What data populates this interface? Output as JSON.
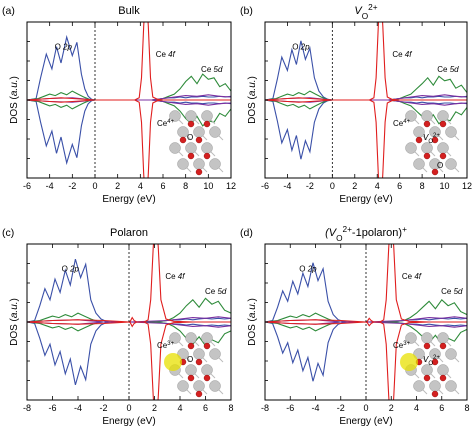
{
  "chart_data": [
    {
      "type": "line",
      "panel_label": "(a)",
      "title": "Bulk",
      "title_html": "Bulk",
      "xlabel": "Energy (eV)",
      "ylabel": "DOS (a.u.)",
      "xlim": [
        -6,
        12
      ],
      "xticks": [
        -6,
        -4,
        -2,
        0,
        2,
        4,
        6,
        8,
        10,
        12
      ],
      "fermi": 0,
      "annotations": [
        {
          "text": "O 2p",
          "x": -2.8,
          "y": 0.68
        },
        {
          "text": "Ce 4f",
          "x": 6.2,
          "y": 0.58
        },
        {
          "text": "Ce 5d",
          "x": 10.3,
          "y": 0.38
        }
      ],
      "struct_labels": [
        "Ce4+",
        "O"
      ],
      "series": [
        {
          "color": "#3a50a8",
          "x": [
            -6,
            -5.2,
            -4.8,
            -4.3,
            -3.8,
            -3.4,
            -3,
            -2.5,
            -2,
            -1.6,
            -1.2,
            -0.9,
            -0.6,
            -0.3,
            0,
            1,
            2,
            3,
            4,
            5,
            5.5,
            6,
            6.5,
            7,
            7.5,
            8,
            8.5,
            9,
            9.5,
            10,
            10.5,
            11,
            11.5,
            12
          ],
          "y": [
            0,
            0.02,
            0.3,
            0.62,
            0.42,
            0.72,
            0.5,
            0.85,
            0.6,
            0.78,
            0.35,
            0.15,
            0.05,
            0.01,
            0,
            0,
            0,
            0,
            0,
            0,
            0.01,
            0.02,
            0.03,
            0.03,
            0.04,
            0.03,
            0.04,
            0.04,
            0.05,
            0.04,
            0.04,
            0.05,
            0.04,
            0.05
          ]
        },
        {
          "color": "#2e8b3a",
          "x": [
            -6,
            -5,
            -4.5,
            -4,
            -3.5,
            -3,
            -2.5,
            -2,
            -1.5,
            -1,
            -0.5,
            0,
            4,
            5,
            6,
            6.5,
            7,
            7.5,
            8,
            8.5,
            9,
            9.5,
            10,
            10.5,
            11,
            11.5,
            12
          ],
          "y": [
            0,
            0.02,
            0.05,
            0.08,
            0.06,
            0.1,
            0.07,
            0.12,
            0.08,
            0.04,
            0.01,
            0,
            0,
            0,
            0.02,
            0.05,
            0.08,
            0.15,
            0.25,
            0.32,
            0.22,
            0.35,
            0.28,
            0.3,
            0.18,
            0.22,
            0.12
          ]
        },
        {
          "color": "#7b2fa0",
          "x": [
            -6,
            -4,
            -2,
            0,
            5,
            6,
            7,
            8,
            9,
            10,
            11,
            12
          ],
          "y": [
            0,
            0.02,
            0.03,
            0,
            0,
            0.02,
            0.04,
            0.06,
            0.05,
            0.07,
            0.05,
            0.04
          ]
        },
        {
          "color": "#e01e1e",
          "x": [
            -6,
            -4,
            -3,
            -2,
            0,
            3.5,
            3.9,
            4.1,
            4.3,
            4.5,
            4.7,
            4.9,
            5.1,
            5.5,
            6,
            8,
            10,
            12
          ],
          "y": [
            0,
            0.02,
            0.03,
            0.02,
            0,
            0,
            0.03,
            0.3,
            1.0,
            1.5,
            1.0,
            0.3,
            0.04,
            0.01,
            0,
            0,
            0,
            0
          ]
        }
      ]
    },
    {
      "type": "line",
      "panel_label": "(b)",
      "title": "VO2+",
      "title_html": "V<sub>O</sub><sup>2+</sup>",
      "xlabel": "Energy (eV)",
      "ylabel": "DOS (a.u.)",
      "xlim": [
        -6,
        12
      ],
      "xticks": [
        -6,
        -4,
        -2,
        0,
        2,
        4,
        6,
        8,
        10,
        12
      ],
      "fermi": 0,
      "annotations": [
        {
          "text": "O 2p",
          "x": -2.8,
          "y": 0.68
        },
        {
          "text": "Ce 4f",
          "x": 6.2,
          "y": 0.58
        },
        {
          "text": "Ce 5d",
          "x": 10.3,
          "y": 0.38
        }
      ],
      "struct_labels": [
        "Ce4+",
        "VO2+",
        "O"
      ],
      "series": [
        {
          "color": "#3a50a8",
          "x": [
            -6,
            -5.3,
            -4.9,
            -4.5,
            -4,
            -3.6,
            -3.2,
            -2.8,
            -2.4,
            -2,
            -1.6,
            -1.2,
            -0.8,
            -0.4,
            0,
            1,
            2,
            3,
            4,
            5,
            5.5,
            6,
            6.5,
            7,
            7.5,
            8,
            8.5,
            9,
            9.5,
            10,
            10.5,
            11,
            11.5,
            12
          ],
          "y": [
            0,
            0.02,
            0.28,
            0.58,
            0.4,
            0.68,
            0.48,
            0.8,
            0.55,
            0.7,
            0.3,
            0.12,
            0.04,
            0.01,
            0,
            0,
            0,
            0,
            0,
            0,
            0.01,
            0.02,
            0.03,
            0.03,
            0.04,
            0.03,
            0.04,
            0.04,
            0.05,
            0.04,
            0.04,
            0.05,
            0.04,
            0.05
          ]
        },
        {
          "color": "#2e8b3a",
          "x": [
            -6,
            -5,
            -4.5,
            -4,
            -3.5,
            -3,
            -2.5,
            -2,
            -1.5,
            -1,
            -0.5,
            0,
            4,
            5,
            6,
            6.5,
            7,
            7.5,
            8,
            8.5,
            9,
            9.5,
            10,
            10.5,
            11,
            11.5,
            12
          ],
          "y": [
            0,
            0.02,
            0.05,
            0.08,
            0.06,
            0.1,
            0.07,
            0.12,
            0.08,
            0.04,
            0.01,
            0,
            0,
            0,
            0.02,
            0.05,
            0.08,
            0.15,
            0.22,
            0.3,
            0.2,
            0.32,
            0.26,
            0.28,
            0.16,
            0.2,
            0.1
          ]
        },
        {
          "color": "#7b2fa0",
          "x": [
            -6,
            -4,
            -2,
            0,
            5,
            6,
            7,
            8,
            9,
            10,
            11,
            12
          ],
          "y": [
            0,
            0.02,
            0.03,
            0,
            0,
            0.02,
            0.04,
            0.06,
            0.05,
            0.07,
            0.05,
            0.04
          ]
        },
        {
          "color": "#e01e1e",
          "x": [
            -6,
            -4,
            -3,
            -2,
            0,
            3.3,
            3.7,
            3.9,
            4.1,
            4.3,
            4.5,
            4.7,
            4.9,
            5.3,
            6,
            8,
            10,
            12
          ],
          "y": [
            0,
            0.02,
            0.03,
            0.02,
            0,
            0,
            0.03,
            0.3,
            1.0,
            1.5,
            1.0,
            0.3,
            0.04,
            0.01,
            0,
            0,
            0,
            0
          ]
        }
      ]
    },
    {
      "type": "line",
      "panel_label": "(c)",
      "title": "Polaron",
      "title_html": "Polaron",
      "xlabel": "Energy (eV)",
      "ylabel": "DOS (a.u.)",
      "xlim": [
        -8,
        8
      ],
      "xticks": [
        -8,
        -6,
        -4,
        -2,
        0,
        2,
        4,
        6,
        8
      ],
      "fermi": 0,
      "annotations": [
        {
          "text": "O 2p",
          "x": -4.6,
          "y": 0.68
        },
        {
          "text": "Ce 4f",
          "x": 3.6,
          "y": 0.58
        },
        {
          "text": "Ce 5d",
          "x": 6.8,
          "y": 0.38
        }
      ],
      "struct_labels": [
        "Ce3+",
        "O"
      ],
      "series": [
        {
          "color": "#3a50a8",
          "x": [
            -8,
            -7.4,
            -7,
            -6.6,
            -6.2,
            -5.8,
            -5.4,
            -5,
            -4.6,
            -4.2,
            -3.8,
            -3.4,
            -3,
            -2.6,
            -2.2,
            -1.8,
            -1.4,
            0,
            1,
            2,
            2.5,
            3,
            3.5,
            4,
            4.5,
            5,
            5.5,
            6,
            6.5,
            7,
            7.5,
            8
          ],
          "y": [
            0,
            0.02,
            0.22,
            0.45,
            0.3,
            0.58,
            0.4,
            0.7,
            0.5,
            0.85,
            0.6,
            0.78,
            0.3,
            0.12,
            0.04,
            0.01,
            0,
            0,
            0,
            0,
            0.01,
            0.02,
            0.03,
            0.03,
            0.04,
            0.03,
            0.04,
            0.05,
            0.04,
            0.05,
            0.04,
            0.05
          ]
        },
        {
          "color": "#2e8b3a",
          "x": [
            -8,
            -7,
            -6.5,
            -6,
            -5.5,
            -5,
            -4.5,
            -4,
            -3.5,
            -3,
            -2.5,
            -2,
            2,
            3,
            3.5,
            4,
            4.5,
            5,
            5.5,
            6,
            6.5,
            7,
            7.5,
            8
          ],
          "y": [
            0,
            0.02,
            0.05,
            0.08,
            0.06,
            0.1,
            0.07,
            0.12,
            0.08,
            0.04,
            0.01,
            0,
            0,
            0.02,
            0.06,
            0.12,
            0.22,
            0.3,
            0.2,
            0.32,
            0.24,
            0.28,
            0.16,
            0.12
          ]
        },
        {
          "color": "#7b2fa0",
          "x": [
            -8,
            -6,
            -4,
            -2,
            0,
            3,
            4,
            5,
            6,
            7,
            8
          ],
          "y": [
            0,
            0.02,
            0.03,
            0,
            0,
            0.02,
            0.04,
            0.06,
            0.05,
            0.07,
            0.05
          ]
        },
        {
          "color": "#e01e1e",
          "x": [
            -8,
            -6,
            -4,
            -2,
            0,
            0.1,
            0.25,
            0.4,
            0.6,
            1.2,
            1.5,
            1.7,
            1.9,
            2.1,
            2.3,
            2.5,
            2.9,
            3.5,
            5,
            8
          ],
          "y": [
            0,
            0.02,
            0.03,
            0.02,
            0,
            0.01,
            0.06,
            0.02,
            0,
            0,
            0.03,
            0.3,
            1.0,
            1.5,
            1.0,
            0.3,
            0.04,
            0.01,
            0,
            0
          ]
        }
      ]
    },
    {
      "type": "line",
      "panel_label": "(d)",
      "title": "(VO2+-1polaron)+",
      "title_html": "(V<sub>O</sub><sup>2+</sup>-1polaron)<sup>+</sup>",
      "xlabel": "Energy (eV)",
      "ylabel": "DOS (a.u.)",
      "xlim": [
        -8,
        8
      ],
      "xticks": [
        -8,
        -6,
        -4,
        -2,
        0,
        2,
        4,
        6,
        8
      ],
      "fermi": 0,
      "annotations": [
        {
          "text": "O 2p",
          "x": -4.6,
          "y": 0.68
        },
        {
          "text": "Ce 4f",
          "x": 3.6,
          "y": 0.58
        },
        {
          "text": "Ce 5d",
          "x": 6.8,
          "y": 0.38
        }
      ],
      "struct_labels": [
        "Ce3+",
        "VO2+"
      ],
      "series": [
        {
          "color": "#3a50a8",
          "x": [
            -8,
            -7.4,
            -7,
            -6.6,
            -6.2,
            -5.8,
            -5.4,
            -5,
            -4.6,
            -4.2,
            -3.8,
            -3.4,
            -3,
            -2.6,
            -2.2,
            -1.8,
            -1.4,
            0,
            1,
            2,
            2.5,
            3,
            3.5,
            4,
            4.5,
            5,
            5.5,
            6,
            6.5,
            7,
            7.5,
            8
          ],
          "y": [
            0,
            0.02,
            0.2,
            0.42,
            0.28,
            0.55,
            0.38,
            0.66,
            0.48,
            0.8,
            0.56,
            0.72,
            0.28,
            0.1,
            0.03,
            0.01,
            0,
            0,
            0,
            0,
            0.01,
            0.02,
            0.03,
            0.03,
            0.04,
            0.03,
            0.04,
            0.05,
            0.04,
            0.05,
            0.04,
            0.05
          ]
        },
        {
          "color": "#2e8b3a",
          "x": [
            -8,
            -7,
            -6.5,
            -6,
            -5.5,
            -5,
            -4.5,
            -4,
            -3.5,
            -3,
            -2.5,
            -2,
            2,
            3,
            3.5,
            4,
            4.5,
            5,
            5.5,
            6,
            6.5,
            7,
            7.5,
            8
          ],
          "y": [
            0,
            0.02,
            0.05,
            0.08,
            0.06,
            0.1,
            0.07,
            0.12,
            0.08,
            0.04,
            0.01,
            0,
            0,
            0.02,
            0.06,
            0.12,
            0.2,
            0.28,
            0.18,
            0.3,
            0.22,
            0.26,
            0.14,
            0.1
          ]
        },
        {
          "color": "#7b2fa0",
          "x": [
            -8,
            -6,
            -4,
            -2,
            0,
            3,
            4,
            5,
            6,
            7,
            8
          ],
          "y": [
            0,
            0.02,
            0.03,
            0,
            0,
            0.02,
            0.04,
            0.06,
            0.05,
            0.07,
            0.05
          ]
        },
        {
          "color": "#e01e1e",
          "x": [
            -8,
            -6,
            -4,
            -2,
            0,
            0.1,
            0.25,
            0.4,
            0.6,
            1.1,
            1.4,
            1.6,
            1.8,
            2,
            2.2,
            2.4,
            2.8,
            3.4,
            5,
            8
          ],
          "y": [
            0,
            0.02,
            0.03,
            0.02,
            0,
            0.01,
            0.05,
            0.02,
            0,
            0,
            0.03,
            0.3,
            1.0,
            1.5,
            1.0,
            0.3,
            0.04,
            0.01,
            0,
            0
          ]
        }
      ]
    }
  ]
}
